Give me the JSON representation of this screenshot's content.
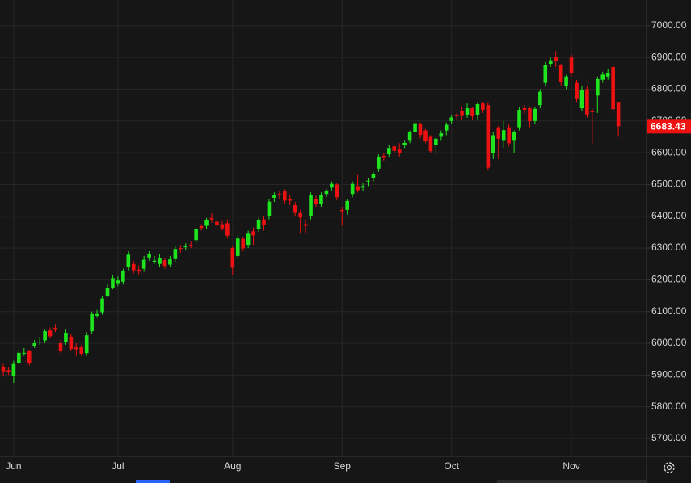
{
  "chart_data": {
    "type": "candlestick",
    "categories": [
      null,
      null,
      "Jun",
      null,
      null,
      null,
      null,
      null,
      null,
      null,
      null,
      null,
      null,
      null,
      null,
      null,
      null,
      null,
      null,
      null,
      null,
      null,
      "Jul",
      null,
      null,
      null,
      null,
      null,
      null,
      null,
      null,
      null,
      null,
      null,
      null,
      null,
      null,
      null,
      null,
      null,
      null,
      null,
      null,
      null,
      "Aug",
      null,
      null,
      null,
      null,
      null,
      null,
      null,
      null,
      null,
      null,
      null,
      null,
      null,
      null,
      null,
      null,
      null,
      null,
      null,
      null,
      "Sep",
      null,
      null,
      null,
      null,
      null,
      null,
      null,
      null,
      null,
      null,
      null,
      null,
      null,
      null,
      null,
      null,
      null,
      null,
      null,
      null,
      "Oct",
      null,
      null,
      null,
      null,
      null,
      null,
      null,
      null,
      null,
      null,
      null,
      null,
      null,
      null,
      null,
      null,
      null,
      null,
      null,
      null,
      null,
      null,
      "Nov",
      null,
      null,
      null,
      null,
      null,
      null,
      null,
      null,
      null
    ],
    "open": [
      5925,
      5915,
      5897,
      5938,
      5968,
      5975,
      5990,
      6004,
      6009,
      6040,
      6049,
      6000,
      6004,
      6021,
      5987,
      5987,
      5969,
      6038,
      6087,
      6098,
      6150,
      6175,
      6187,
      6194,
      6240,
      6250,
      6232,
      6235,
      6270,
      6255,
      6250,
      6262,
      6248,
      6265,
      6300,
      6304,
      6310,
      6325,
      6369,
      6370,
      6395,
      6383,
      6375,
      6378,
      6300,
      6275,
      6329,
      6310,
      6353,
      6360,
      6390,
      6400,
      6458,
      6470,
      6478,
      6455,
      6435,
      6410,
      6375,
      6400,
      6454,
      6440,
      6470,
      6490,
      6500,
      6420,
      6420,
      6470,
      6495,
      6490,
      6510,
      6520,
      6550,
      6590,
      6595,
      6620,
      6610,
      6625,
      6640,
      6665,
      6690,
      6670,
      6650,
      6625,
      6650,
      6670,
      6700,
      6720,
      6730,
      6720,
      6740,
      6720,
      6755,
      6750,
      6600,
      6680,
      6640,
      6680,
      6640,
      6680,
      6740,
      6740,
      6700,
      6750,
      6820,
      6880,
      6900,
      6875,
      6810,
      6900,
      6820,
      6740,
      6800,
      6730,
      6780,
      6830,
      6840,
      6870,
      6760
    ],
    "high": [
      5935,
      5925,
      5945,
      5980,
      5985,
      5980,
      6010,
      6020,
      6045,
      6050,
      6060,
      6010,
      6045,
      6030,
      6000,
      5995,
      6035,
      6100,
      6105,
      6150,
      6185,
      6215,
      6210,
      6235,
      6290,
      6260,
      6245,
      6275,
      6290,
      6275,
      6280,
      6270,
      6275,
      6305,
      6310,
      6315,
      6320,
      6365,
      6375,
      6395,
      6410,
      6395,
      6385,
      6390,
      6305,
      6340,
      6335,
      6355,
      6365,
      6395,
      6400,
      6455,
      6475,
      6480,
      6485,
      6465,
      6445,
      6420,
      6390,
      6475,
      6465,
      6475,
      6485,
      6510,
      6505,
      6430,
      6455,
      6510,
      6530,
      6505,
      6520,
      6540,
      6595,
      6600,
      6625,
      6625,
      6630,
      6640,
      6670,
      6700,
      6695,
      6675,
      6655,
      6650,
      6670,
      6695,
      6720,
      6725,
      6745,
      6755,
      6745,
      6760,
      6760,
      6760,
      6665,
      6685,
      6700,
      6690,
      6670,
      6745,
      6750,
      6745,
      6745,
      6800,
      6885,
      6900,
      6920,
      6880,
      6845,
      6910,
      6830,
      6810,
      6810,
      6740,
      6840,
      6855,
      6865,
      6875,
      6760
    ],
    "low": [
      5895,
      5900,
      5875,
      5930,
      5960,
      5930,
      5985,
      5995,
      6000,
      6015,
      6035,
      5970,
      5995,
      5975,
      5960,
      5960,
      5960,
      6030,
      6080,
      6090,
      6145,
      6170,
      6180,
      6185,
      6230,
      6220,
      6215,
      6225,
      6260,
      6250,
      6240,
      6235,
      6240,
      6255,
      6285,
      6295,
      6300,
      6315,
      6355,
      6360,
      6380,
      6360,
      6355,
      6330,
      6215,
      6270,
      6290,
      6300,
      6310,
      6350,
      6355,
      6390,
      6445,
      6455,
      6440,
      6435,
      6400,
      6345,
      6345,
      6390,
      6430,
      6430,
      6460,
      6480,
      6450,
      6370,
      6405,
      6460,
      6475,
      6480,
      6495,
      6510,
      6540,
      6575,
      6585,
      6600,
      6585,
      6615,
      6630,
      6655,
      6645,
      6630,
      6600,
      6595,
      6640,
      6655,
      6690,
      6705,
      6705,
      6710,
      6705,
      6705,
      6725,
      6545,
      6580,
      6580,
      6615,
      6620,
      6600,
      6670,
      6725,
      6680,
      6690,
      6740,
      6810,
      6870,
      6870,
      6810,
      6800,
      6840,
      6760,
      6730,
      6710,
      6630,
      6725,
      6820,
      6830,
      6720,
      6650
    ],
    "close": [
      5912,
      5911,
      5935,
      5970,
      5970,
      5939,
      6000,
      6005,
      6038,
      6022,
      6045,
      5977,
      6033,
      5982,
      5981,
      5967,
      6025,
      6092,
      6092,
      6141,
      6173,
      6205,
      6198,
      6227,
      6279,
      6230,
      6226,
      6263,
      6280,
      6260,
      6269,
      6244,
      6264,
      6297,
      6297,
      6305,
      6309,
      6359,
      6363,
      6388,
      6390,
      6371,
      6362,
      6339,
      6238,
      6330,
      6299,
      6345,
      6340,
      6389,
      6374,
      6446,
      6466,
      6469,
      6449,
      6449,
      6411,
      6396,
      6370,
      6467,
      6439,
      6466,
      6481,
      6502,
      6460,
      6416,
      6448,
      6502,
      6482,
      6495,
      6512,
      6532,
      6587,
      6584,
      6615,
      6606,
      6600,
      6631,
      6664,
      6693,
      6656,
      6638,
      6605,
      6644,
      6661,
      6688,
      6711,
      6715,
      6716,
      6740,
      6715,
      6753,
      6735,
      6553,
      6655,
      6644,
      6671,
      6630,
      6664,
      6735,
      6735,
      6699,
      6738,
      6792,
      6875,
      6891,
      6890,
      6822,
      6840,
      6852,
      6771,
      6796,
      6720,
      6728,
      6832,
      6846,
      6851,
      6737,
      6683.43
    ],
    "up_color": "#1fe51f",
    "down_color": "#ee1111",
    "ylim": [
      5644,
      7081
    ],
    "yticks": [
      {
        "value": 5700,
        "label": "5700.00"
      },
      {
        "value": 5800,
        "label": "5800.00"
      },
      {
        "value": 5900,
        "label": "5900.00"
      },
      {
        "value": 6000,
        "label": "6000.00"
      },
      {
        "value": 6100,
        "label": "6100.00"
      },
      {
        "value": 6200,
        "label": "6200.00"
      },
      {
        "value": 6300,
        "label": "6300.00"
      },
      {
        "value": 6400,
        "label": "6400.00"
      },
      {
        "value": 6500,
        "label": "6500.00"
      },
      {
        "value": 6600,
        "label": "6600.00"
      },
      {
        "value": 6700,
        "label": "6700.00"
      },
      {
        "value": 6800,
        "label": "6800.00"
      },
      {
        "value": 6900,
        "label": "6900.00"
      },
      {
        "value": 7000,
        "label": "7000.00"
      }
    ],
    "grid": true
  }
}
